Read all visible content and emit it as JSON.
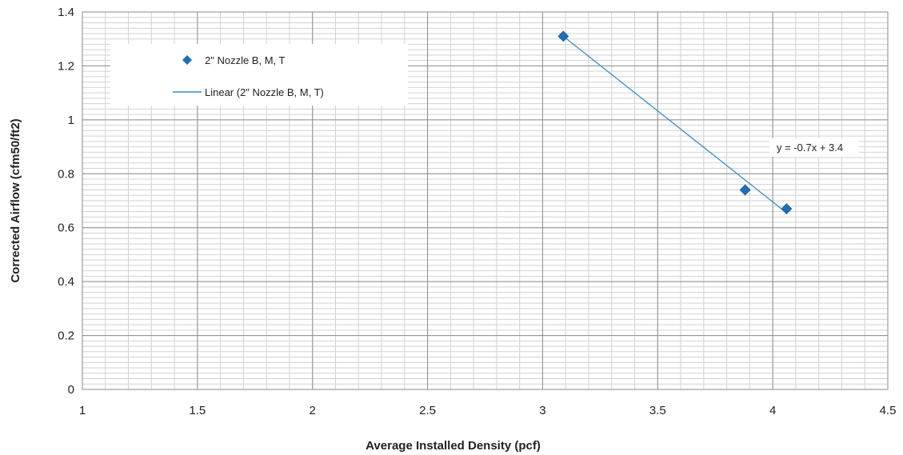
{
  "chart_data": {
    "type": "scatter",
    "title": "",
    "xlabel": "Average Installed Density (pcf)",
    "ylabel": "Corrected Airflow (cfm50/ft2)",
    "xlim": [
      1,
      4.5
    ],
    "ylim": [
      0,
      1.4
    ],
    "x_ticks": [
      "1",
      "1.5",
      "2",
      "2.5",
      "3",
      "3.5",
      "4",
      "4.5"
    ],
    "y_ticks": [
      "0",
      "0.2",
      "0.4",
      "0.6",
      "0.8",
      "1",
      "1.2",
      "1.4"
    ],
    "grid": true,
    "legend_position": "top-left",
    "series": [
      {
        "name": "2\" Nozzle B, M, T",
        "marker": "diamond",
        "color": "#1f6fb8",
        "points": [
          {
            "x": 3.09,
            "y": 1.31
          },
          {
            "x": 3.88,
            "y": 0.74
          },
          {
            "x": 4.06,
            "y": 0.67
          }
        ]
      }
    ],
    "trendline": {
      "name": "Linear (2\" Nozzle B, M, T)",
      "type": "linear",
      "color": "#3a8cc8",
      "x_start": 3.09,
      "y_start": 1.31,
      "x_end": 4.06,
      "y_end": 0.655,
      "equation": "y = -0.7x + 3.4"
    }
  }
}
